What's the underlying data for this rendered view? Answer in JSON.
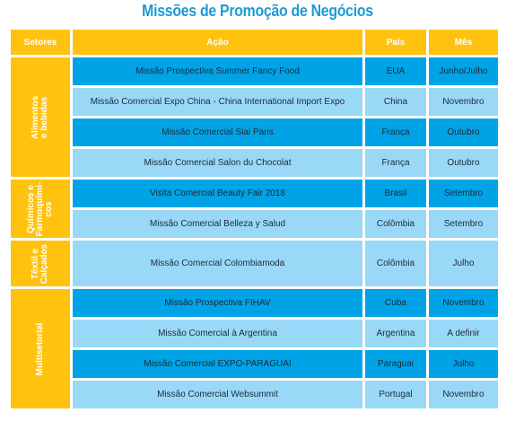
{
  "title": "Missões de Promoção de Negócios",
  "headers": {
    "sector": "Setores",
    "action": "Ação",
    "country": "País",
    "month": "Mês"
  },
  "sectors": {
    "food": [
      "Alimentos",
      "e bebidas"
    ],
    "chem": [
      "Químicos e",
      "Farmoquími-",
      "cos"
    ],
    "textile": [
      "Têxtil e",
      "Calçados"
    ],
    "multi": [
      "Multisetorial"
    ]
  },
  "rows": [
    {
      "action": "Missão Prospectiva Summer Fancy Food",
      "country": "EUA",
      "month": "Junho/Julho"
    },
    {
      "action": "Missão Comercial Expo China - China International Import Expo",
      "country": "China",
      "month": "Novembro"
    },
    {
      "action": "Missão Comercial Sial Paris",
      "country": "França",
      "month": "Outubro"
    },
    {
      "action": "Missão Comercial Salon du Chocolat",
      "country": "França",
      "month": "Outubro"
    },
    {
      "action": "Visita Comercial Beauty Fair 2018",
      "country": "Brasil",
      "month": "Setembro"
    },
    {
      "action": "Missão Comercial Belleza y Salud",
      "country": "Colômbia",
      "month": "Setembro"
    },
    {
      "action": "Missão Comercial Colombiamoda",
      "country": "Colômbia",
      "month": "Julho"
    },
    {
      "action": "Missão Prospectiva FIHAV",
      "country": "Cuba",
      "month": "Novembro"
    },
    {
      "action": "Missão Comercial à Argentina",
      "country": "Argentina",
      "month": "A definir"
    },
    {
      "action": "Missão Comercial EXPO-PARAGUAI",
      "country": "Paraguai",
      "month": "Julho"
    },
    {
      "action": "Missão Comercial Websummit",
      "country": "Portugal",
      "month": "Novembro"
    }
  ],
  "colors": {
    "header": "#ffc20e",
    "title": "#1d9ad6",
    "row_dark": "#00a3e6",
    "row_light": "#9ad8f7"
  }
}
